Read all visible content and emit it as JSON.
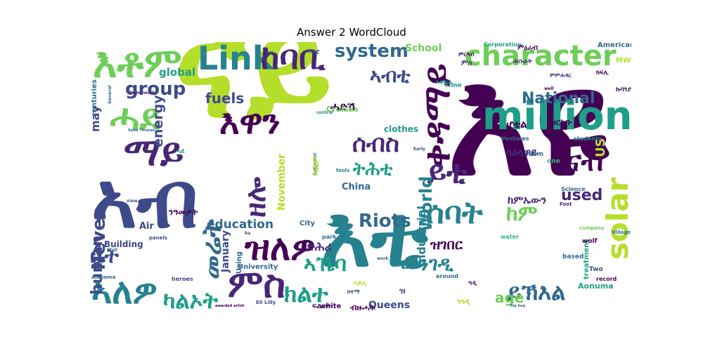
{
  "title": "Answer 2 WordCloud",
  "palette": {
    "purple": "#440154",
    "darkpurple": "#482677",
    "indigo": "#3e4a89",
    "blue": "#31688e",
    "teal": "#26828e",
    "green": "#1f9e89",
    "lightgreen": "#35b779",
    "lime": "#6ece58",
    "yellowgreen": "#b5de2b",
    "yellow": "#fde725"
  },
  "words": {
    "w001": "ናይ",
    "w002": "እቲ",
    "w003": "ኣብ",
    "w004": "እዩ",
    "w005": "million",
    "w006": "character",
    "w007": "Link",
    "w008": "ከባቢ",
    "w009": "እቶም",
    "w010": "ሓደ",
    "w011": "ማይ",
    "w012": "እዋን",
    "w013": "ዝለዎ",
    "w014": "ምስ",
    "w015": "ኣለዎ",
    "w016": "መሬት",
    "w017": "solar",
    "w018": "ቀዳማይ",
    "w019": "ናብ",
    "w020": "ሰባት",
    "w021": "Riots",
    "w022": "system",
    "w023": "group",
    "w024": "Never",
    "w025": "education",
    "w026": "ይኽእል",
    "w027": "National",
    "w028": "ካልኦት",
    "w029": "ክልተ",
    "w030": "መንገዲ",
    "w031": "ኣኼባ",
    "w032": "ቤት",
    "w033": "ከም",
    "w034": "ዘሎ",
    "w035": "ይቲ",
    "w036": "ሰብስ",
    "w037": "ትሕቲ",
    "w038": "ኣብቲ",
    "w039": "ዝገበር",
    "w040": "ሓድሽ",
    "w041": "fuels",
    "w042": "energy",
    "w043": "human",
    "w044": "World",
    "w045": "Industrial",
    "w046": "used",
    "w047": "age",
    "w048": "ኣለዎ",
    "w049": "US",
    "w050": "ሆቴል",
    "w051": "ላዕላዋይ",
    "w052": "ከምኡውን",
    "w053": "ምዕራብ",
    "w054": "ምስ",
    "w055": "ዝርከቡ",
    "w056": "November",
    "w057": "January",
    "w058": "global",
    "w059": "School",
    "w060": "may",
    "w061": "China",
    "w062": "clothes",
    "w063": "Cruises",
    "w064": "ድሕሪ",
    "w065": "ንዓመታት",
    "w066": "Air",
    "w067": "Building",
    "w068": "Queens",
    "w069": "white",
    "w070": "Aonuma",
    "w071": "treatment",
    "w072": "University",
    "w073": "Using",
    "w074": "City",
    "w075": "park",
    "w076": "centuries",
    "w077": "Americans",
    "w078": "MW",
    "w079": "Time",
    "w080": "Corporation",
    "w081": "Ventures",
    "w082": "seem",
    "w083": "students",
    "w084": "Science",
    "w085": "company",
    "w086": "Village",
    "w087": "wolf",
    "w088": "water",
    "w089": "based",
    "w090": "around",
    "w091": "record",
    "w092": "Two",
    "w093": "Foot",
    "w094": "heroes",
    "w095": "Alabama",
    "w096": "Eli Lilly",
    "w097": "awarded artist",
    "w098": "hip hop",
    "w099": "Saint Thomas",
    "w100": "framework",
    "w101": "General",
    "w102": "panels",
    "w103": "fall",
    "w104": "view",
    "w105": "ha",
    "w106": "one",
    "w107": "well",
    "w108": "work",
    "w109": "fools",
    "w110": "central",
    "w111": "judgment",
    "w112": "Early",
    "w113": "ዝ",
    "w114": "ምርካብ",
    "w115": "ኣዋርሕ",
    "w116": "ሕቡራት",
    "w117": "ክፍሊ",
    "w118": "ምምሕዳር",
    "w119": "ሓደ",
    "w120": "ኣብቲ",
    "w121": "ብዙሓት",
    "w122": "ፍልጠት",
    "w123": "ንግዲ",
    "w124": "ዓዲ",
    "w125": "ሓይሊ",
    "w126": "ከተማ",
    "w127": "ኩባንያ"
  }
}
